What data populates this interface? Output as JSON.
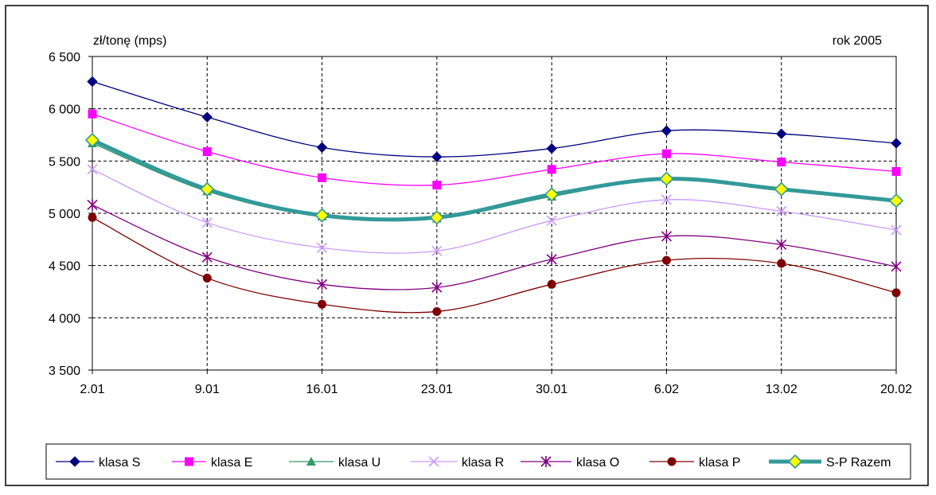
{
  "chart_data": {
    "type": "line",
    "ylabel": "zł/tonę (mps)",
    "annotation": "rok 2005",
    "categories": [
      "2.01",
      "9.01",
      "16.01",
      "23.01",
      "30.01",
      "6.02",
      "13.02",
      "20.02"
    ],
    "ylim": [
      3500,
      6500
    ],
    "yticks": [
      3500,
      4000,
      4500,
      5000,
      5500,
      6000,
      6500
    ],
    "ytick_labels": [
      "3 500",
      "4 000",
      "4 500",
      "5 000",
      "5 500",
      "6 000",
      "6 500"
    ],
    "grid": true,
    "legend_position": "bottom",
    "series": [
      {
        "name": "klasa S",
        "values": [
          6260,
          5920,
          5630,
          5540,
          5620,
          5790,
          5760,
          5670
        ],
        "color": "#000080",
        "marker": "diamond"
      },
      {
        "name": "klasa E",
        "values": [
          5950,
          5590,
          5340,
          5270,
          5420,
          5570,
          5490,
          5400
        ],
        "color": "#ff00ff",
        "marker": "square"
      },
      {
        "name": "klasa U",
        "values": [
          5670,
          5210,
          4970,
          4950,
          5160,
          5330,
          5240,
          5120
        ],
        "color": "#339966",
        "marker": "triangle"
      },
      {
        "name": "klasa R",
        "values": [
          5420,
          4910,
          4670,
          4640,
          4930,
          5130,
          5020,
          4840
        ],
        "color": "#cc99ff",
        "marker": "x"
      },
      {
        "name": "klasa O",
        "values": [
          5080,
          4580,
          4320,
          4290,
          4560,
          4780,
          4700,
          4490
        ],
        "color": "#800080",
        "marker": "star"
      },
      {
        "name": "klasa P",
        "values": [
          4960,
          4380,
          4130,
          4060,
          4320,
          4550,
          4520,
          4240
        ],
        "color": "#800000",
        "marker": "circle"
      },
      {
        "name": "S-P Razem",
        "values": [
          5700,
          5230,
          4980,
          4960,
          5180,
          5330,
          5230,
          5120
        ],
        "color": "#339999",
        "marker": "diamond-yellow",
        "thick": true
      }
    ]
  }
}
